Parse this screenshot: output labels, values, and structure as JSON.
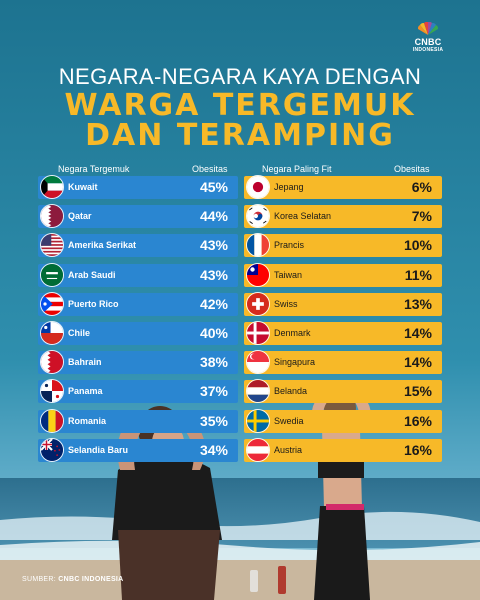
{
  "brand": {
    "name": "CNBC",
    "sub": "INDONESIA"
  },
  "title": {
    "line1": "NEGARA-NEGARA KAYA DENGAN",
    "line2": "WARGA TERGEMUK",
    "line3": "DAN TERAMPING"
  },
  "chart_data": [
    {
      "type": "table",
      "columns": [
        "Negara Tergemuk",
        "Obesitas"
      ],
      "rows": [
        {
          "country": "Kuwait",
          "value": 45,
          "label": "45%",
          "flag": "kuwait-flag"
        },
        {
          "country": "Qatar",
          "value": 44,
          "label": "44%",
          "flag": "qatar-flag"
        },
        {
          "country": "Amerika Serikat",
          "value": 43,
          "label": "43%",
          "flag": "usa-flag"
        },
        {
          "country": "Arab Saudi",
          "value": 43,
          "label": "43%",
          "flag": "saudi-arabia-flag"
        },
        {
          "country": "Puerto Rico",
          "value": 42,
          "label": "42%",
          "flag": "puerto-rico-flag"
        },
        {
          "country": "Chile",
          "value": 40,
          "label": "40%",
          "flag": "chile-flag"
        },
        {
          "country": "Bahrain",
          "value": 38,
          "label": "38%",
          "flag": "bahrain-flag"
        },
        {
          "country": "Panama",
          "value": 37,
          "label": "37%",
          "flag": "panama-flag"
        },
        {
          "country": "Romania",
          "value": 35,
          "label": "35%",
          "flag": "romania-flag"
        },
        {
          "country": "Selandia Baru",
          "value": 34,
          "label": "34%",
          "flag": "new-zealand-flag"
        }
      ],
      "color": "#2a86d1"
    },
    {
      "type": "table",
      "columns": [
        "Negara Paling Fit",
        "Obesitas"
      ],
      "rows": [
        {
          "country": "Jepang",
          "value": 6,
          "label": "6%",
          "flag": "japan-flag"
        },
        {
          "country": "Korea Selatan",
          "value": 7,
          "label": "7%",
          "flag": "south-korea-flag"
        },
        {
          "country": "Prancis",
          "value": 10,
          "label": "10%",
          "flag": "france-flag"
        },
        {
          "country": "Taiwan",
          "value": 11,
          "label": "11%",
          "flag": "taiwan-flag"
        },
        {
          "country": "Swiss",
          "value": 13,
          "label": "13%",
          "flag": "switzerland-flag"
        },
        {
          "country": "Denmark",
          "value": 14,
          "label": "14%",
          "flag": "denmark-flag"
        },
        {
          "country": "Singapura",
          "value": 14,
          "label": "14%",
          "flag": "singapore-flag"
        },
        {
          "country": "Belanda",
          "value": 15,
          "label": "15%",
          "flag": "netherlands-flag"
        },
        {
          "country": "Swedia",
          "value": 16,
          "label": "16%",
          "flag": "sweden-flag"
        },
        {
          "country": "Austria",
          "value": 16,
          "label": "16%",
          "flag": "austria-flag"
        }
      ],
      "color": "#f7b928"
    }
  ],
  "source": {
    "label": "SUMBER:",
    "name": "CNBC INDONESIA"
  }
}
